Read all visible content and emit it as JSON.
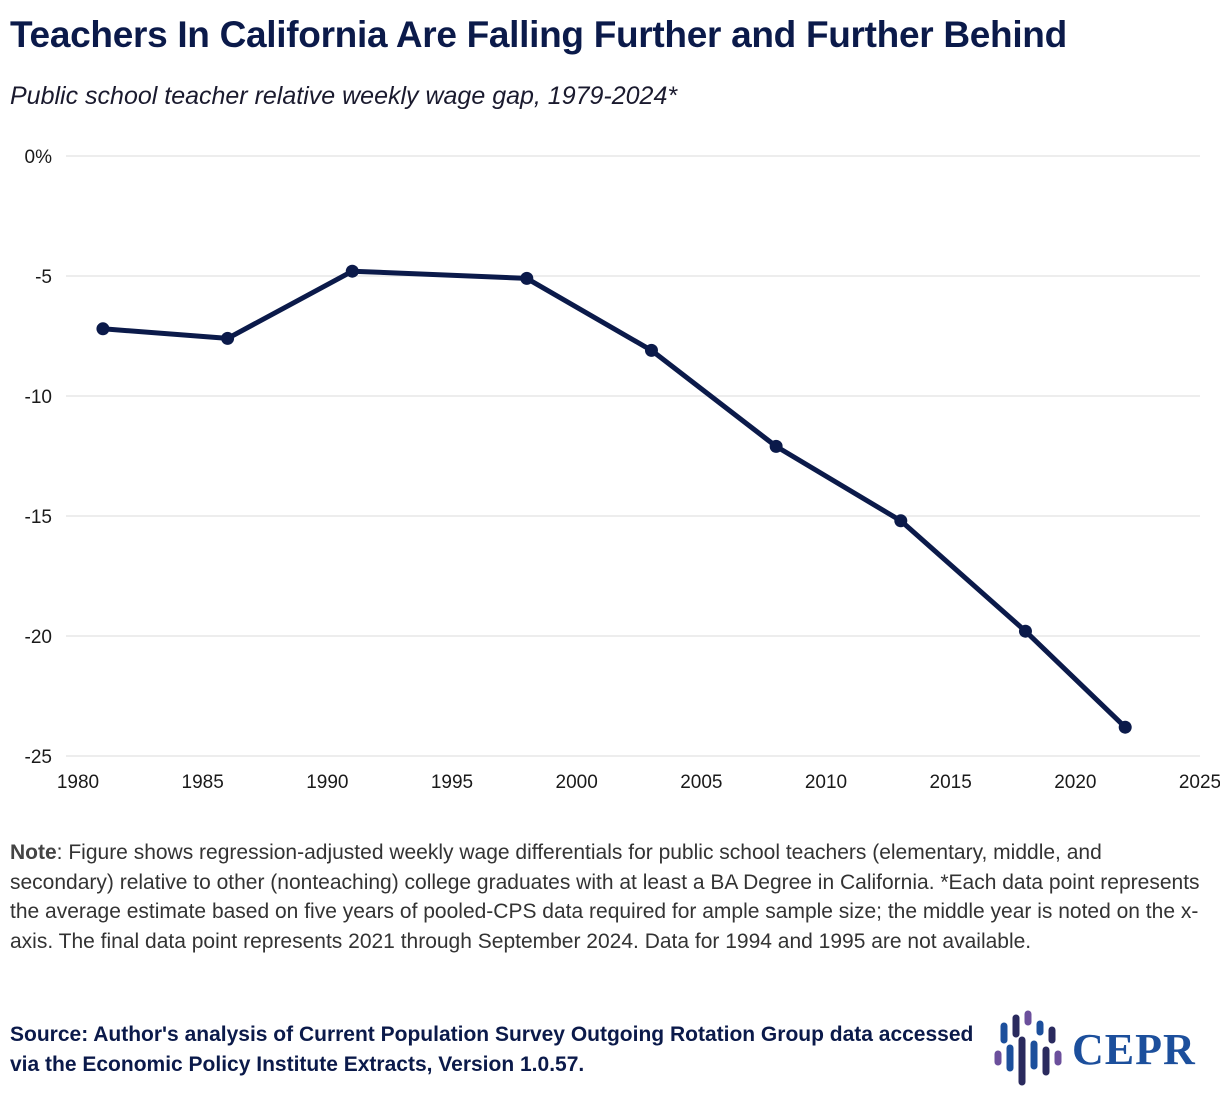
{
  "title": "Teachers In California Are Falling Further and Further Behind",
  "subtitle": "Public school teacher relative weekly wage gap, 1979-2024*",
  "note": {
    "label": "Note",
    "text": ": Figure shows regression-adjusted weekly wage differentials for public school teachers (elementary, middle, and secondary) relative to other (nonteaching) college graduates with at least a BA Degree in California. *Each data point represents the average estimate based on five years of pooled-CPS data required for ample sample size; the middle year is noted on the x-axis. The final data point represents 2021 through September 2024. Data for 1994 and 1995 are not available."
  },
  "source": "Source: Author's analysis of Current Population Survey Outgoing Rotation Group data accessed via the Economic Policy Institute Extracts, Version 1.0.57.",
  "logo": {
    "text": "CEPR",
    "icon": "cepr-logo-icon"
  },
  "colors": {
    "line": "#0b1a4a",
    "grid": "#e2e2e2",
    "logo": "#1c4f9c"
  },
  "chart_data": {
    "type": "line",
    "title": "Teachers In California Are Falling Further and Further Behind",
    "subtitle": "Public school teacher relative weekly wage gap, 1979-2024*",
    "xlabel": "",
    "ylabel": "",
    "xlim": [
      1980,
      2025
    ],
    "ylim": [
      -25,
      0
    ],
    "grid": true,
    "x_ticks": [
      1980,
      1985,
      1990,
      1995,
      2000,
      2005,
      2010,
      2015,
      2020,
      2025
    ],
    "y_ticks": [
      {
        "value": 0,
        "label": "0%"
      },
      {
        "value": -5,
        "label": "-5"
      },
      {
        "value": -10,
        "label": "-10"
      },
      {
        "value": -15,
        "label": "-15"
      },
      {
        "value": -20,
        "label": "-20"
      },
      {
        "value": -25,
        "label": "-25"
      }
    ],
    "series": [
      {
        "name": "Relative weekly wage gap",
        "x": [
          1981,
          1986,
          1991,
          1998,
          2003,
          2008,
          2013,
          2018,
          2022
        ],
        "values": [
          -7.2,
          -7.6,
          -4.8,
          -5.1,
          -8.1,
          -12.1,
          -15.2,
          -19.8,
          -23.8
        ]
      }
    ]
  }
}
